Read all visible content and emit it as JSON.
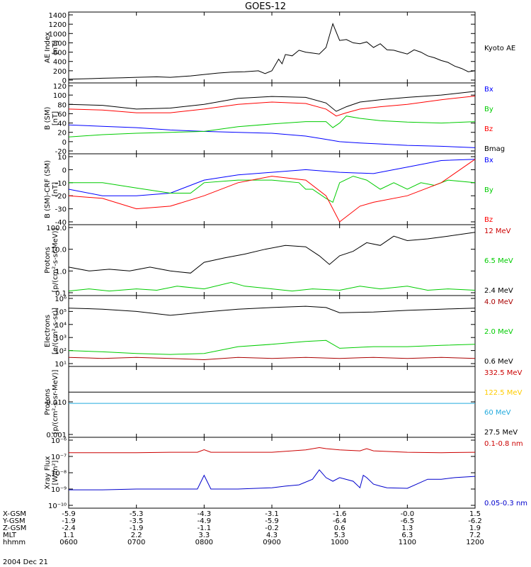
{
  "title": "GOES-12",
  "date_label": "2004 Dec 21",
  "chart_data": [
    {
      "type": "line",
      "ylabel": [
        "AE Index",
        "[nT]"
      ],
      "ylim": [
        0,
        1400
      ],
      "log": false,
      "yticks": [
        0,
        200,
        400,
        600,
        800,
        1000,
        1200,
        1400
      ],
      "ytick_labels": [
        "0",
        "200",
        "400",
        "600",
        "800",
        "1000",
        "1200",
        "1400"
      ],
      "series": [
        {
          "name": "Kyoto AE",
          "color": "#000000",
          "x": [
            0,
            0.3,
            0.5,
            0.8,
            1.0,
            1.3,
            1.5,
            1.8,
            2.0,
            2.2,
            2.4,
            2.6,
            2.8,
            2.9,
            3.0,
            3.1,
            3.15,
            3.2,
            3.3,
            3.4,
            3.5,
            3.6,
            3.7,
            3.8,
            3.9,
            4.0,
            4.1,
            4.2,
            4.3,
            4.4,
            4.5,
            4.6,
            4.7,
            4.8,
            4.9,
            5.0,
            5.1,
            5.2,
            5.3,
            5.4,
            5.5,
            5.6,
            5.7,
            5.8,
            5.9,
            6.0
          ],
          "y": [
            20,
            30,
            40,
            50,
            60,
            70,
            60,
            90,
            120,
            150,
            170,
            180,
            200,
            140,
            200,
            450,
            350,
            550,
            520,
            640,
            600,
            580,
            560,
            700,
            1210,
            850,
            870,
            800,
            780,
            820,
            700,
            780,
            650,
            640,
            600,
            560,
            650,
            600,
            520,
            480,
            420,
            380,
            300,
            250,
            180,
            200
          ]
        }
      ]
    },
    {
      "type": "line",
      "ylabel": [
        "B (SM)",
        "[nT]"
      ],
      "ylim": [
        -20,
        120
      ],
      "log": false,
      "yticks": [
        -20,
        0,
        20,
        40,
        60,
        80,
        100,
        120
      ],
      "ytick_labels": [
        "-20",
        "0",
        "20",
        "40",
        "60",
        "80",
        "100",
        "120"
      ],
      "series": [
        {
          "name": "Bx",
          "color": "#0000ff",
          "x": [
            0,
            0.5,
            1.0,
            1.5,
            2.0,
            2.5,
            3.0,
            3.5,
            3.8,
            4.0,
            4.3,
            4.6,
            5.0,
            5.5,
            6.0
          ],
          "y": [
            36,
            33,
            30,
            25,
            22,
            20,
            18,
            12,
            5,
            0,
            -3,
            -5,
            -8,
            -10,
            -13
          ]
        },
        {
          "name": "By",
          "color": "#00cc00",
          "x": [
            0,
            0.5,
            1.0,
            1.5,
            2.0,
            2.5,
            3.0,
            3.5,
            3.8,
            3.9,
            4.0,
            4.1,
            4.3,
            4.6,
            5.0,
            5.5,
            6.0
          ],
          "y": [
            10,
            15,
            18,
            20,
            22,
            32,
            38,
            43,
            43,
            30,
            40,
            55,
            50,
            45,
            42,
            40,
            43
          ]
        },
        {
          "name": "Bz",
          "color": "#ff0000",
          "x": [
            0,
            0.5,
            1.0,
            1.5,
            2.0,
            2.5,
            3.0,
            3.5,
            3.8,
            3.95,
            4.1,
            4.3,
            4.6,
            5.0,
            5.5,
            6.0
          ],
          "y": [
            70,
            68,
            62,
            62,
            70,
            80,
            85,
            82,
            70,
            55,
            62,
            70,
            75,
            80,
            90,
            98
          ]
        },
        {
          "name": "Bmag",
          "color": "#000000",
          "x": [
            0,
            0.5,
            1.0,
            1.5,
            2.0,
            2.5,
            3.0,
            3.5,
            3.8,
            3.95,
            4.1,
            4.3,
            4.6,
            5.0,
            5.5,
            6.0
          ],
          "y": [
            80,
            78,
            70,
            72,
            80,
            93,
            97,
            95,
            83,
            65,
            75,
            85,
            90,
            95,
            100,
            108
          ]
        }
      ]
    },
    {
      "type": "line",
      "ylabel": [
        "B (SM)-CRF (SM)",
        "[nT]"
      ],
      "ylim": [
        -40,
        10
      ],
      "log": false,
      "yticks": [
        -40,
        -30,
        -20,
        -10,
        0,
        10
      ],
      "ytick_labels": [
        "-40",
        "-30",
        "-20",
        "-10",
        "0",
        "10"
      ],
      "series": [
        {
          "name": "Bx",
          "color": "#0000ff",
          "x": [
            0,
            0.5,
            1.0,
            1.5,
            2.0,
            2.5,
            3.0,
            3.5,
            4.0,
            4.5,
            5.0,
            5.5,
            6.0
          ],
          "y": [
            -15,
            -20,
            -20,
            -18,
            -8,
            -4,
            -2,
            0,
            -2,
            -3,
            2,
            7,
            8
          ]
        },
        {
          "name": "By",
          "color": "#00cc00",
          "x": [
            0,
            0.5,
            1.0,
            1.5,
            1.8,
            2.0,
            2.5,
            3.0,
            3.4,
            3.5,
            3.6,
            3.8,
            3.9,
            4.0,
            4.2,
            4.4,
            4.6,
            4.8,
            5.0,
            5.2,
            5.4,
            5.6,
            6.0
          ],
          "y": [
            -10,
            -10,
            -14,
            -18,
            -18,
            -10,
            -8,
            -8,
            -10,
            -15,
            -15,
            -22,
            -25,
            -10,
            -5,
            -8,
            -15,
            -10,
            -15,
            -10,
            -12,
            -8,
            -10
          ]
        },
        {
          "name": "Bz",
          "color": "#ff0000",
          "x": [
            0,
            0.5,
            1.0,
            1.5,
            2.0,
            2.5,
            3.0,
            3.5,
            3.8,
            4.0,
            4.3,
            4.5,
            5.0,
            5.5,
            6.0
          ],
          "y": [
            -20,
            -22,
            -30,
            -28,
            -20,
            -10,
            -5,
            -8,
            -20,
            -40,
            -28,
            -25,
            -20,
            -10,
            8
          ]
        }
      ]
    },
    {
      "type": "line",
      "ylabel": [
        "Protons",
        "[p/(cm²-s-sr-MeV)]"
      ],
      "ylim": [
        0.1,
        100
      ],
      "log": true,
      "yticks": [
        0.1,
        1,
        10,
        100
      ],
      "ytick_labels": [
        "0.1",
        "1.0",
        "10.0",
        "100.0"
      ],
      "series": [
        {
          "name": "12 MeV",
          "color": "#cc0000",
          "x": [],
          "y": []
        },
        {
          "name": "6.5 MeV",
          "color": "#00cc00",
          "x": [
            0,
            0.3,
            0.6,
            1.0,
            1.3,
            1.6,
            2.0,
            2.4,
            2.6,
            3.0,
            3.3,
            3.6,
            4.0,
            4.3,
            4.6,
            5.0,
            5.3,
            5.6,
            6.0
          ],
          "y": [
            0.12,
            0.15,
            0.12,
            0.15,
            0.13,
            0.2,
            0.15,
            0.3,
            0.2,
            0.15,
            0.12,
            0.15,
            0.13,
            0.2,
            0.15,
            0.2,
            0.13,
            0.15,
            0.13
          ]
        },
        {
          "name": "2.4 MeV",
          "color": "#000000",
          "x": [
            0,
            0.3,
            0.6,
            0.9,
            1.2,
            1.5,
            1.8,
            2.0,
            2.3,
            2.6,
            2.9,
            3.2,
            3.5,
            3.7,
            3.85,
            4.0,
            4.2,
            4.4,
            4.6,
            4.8,
            5.0,
            5.3,
            5.6,
            6.0
          ],
          "y": [
            1.5,
            1.0,
            1.2,
            1.0,
            1.5,
            1.0,
            0.8,
            2.5,
            4,
            6,
            10,
            15,
            13,
            5,
            2,
            5,
            8,
            20,
            15,
            40,
            25,
            30,
            40,
            60
          ]
        }
      ]
    },
    {
      "type": "line",
      "ylabel": [
        "Electrons",
        "[e/(cm²-s-sr)]"
      ],
      "ylim": [
        10,
        1000000
      ],
      "log": true,
      "yticks": [
        10,
        100,
        1000,
        10000,
        100000,
        1000000
      ],
      "ytick_labels": [
        "10¹",
        "10²",
        "10³",
        "10⁴",
        "10⁵",
        "10⁶"
      ],
      "series": [
        {
          "name": "4.0 MeV",
          "color": "#aa0000",
          "x": [
            0,
            0.5,
            1.0,
            1.5,
            2.0,
            2.5,
            3.0,
            3.5,
            4.0,
            4.5,
            5.0,
            5.5,
            6.0
          ],
          "y": [
            30,
            25,
            30,
            25,
            20,
            30,
            25,
            30,
            25,
            30,
            25,
            30,
            25
          ]
        },
        {
          "name": "2.0 MeV",
          "color": "#00cc00",
          "x": [
            0,
            0.5,
            1.0,
            1.5,
            2.0,
            2.5,
            3.0,
            3.5,
            3.8,
            4.0,
            4.5,
            5.0,
            5.5,
            6.0
          ],
          "y": [
            100,
            80,
            60,
            50,
            60,
            200,
            300,
            500,
            600,
            150,
            200,
            200,
            250,
            300
          ]
        },
        {
          "name": "0.6 MeV",
          "color": "#000000",
          "x": [
            0,
            0.5,
            1.0,
            1.5,
            2.0,
            2.5,
            3.0,
            3.5,
            3.8,
            4.0,
            4.5,
            5.0,
            5.5,
            6.0
          ],
          "y": [
            180000,
            150000,
            100000,
            50000,
            90000,
            150000,
            200000,
            250000,
            200000,
            80000,
            90000,
            120000,
            150000,
            180000
          ]
        }
      ]
    },
    {
      "type": "line",
      "ylabel": [
        "Protons",
        "[p/(cm²-s-sr-MeV)]"
      ],
      "ylim": [
        0.001,
        0.1
      ],
      "log": true,
      "yticks": [
        0.001,
        0.01
      ],
      "ytick_labels": [
        "0.001",
        "0.010"
      ],
      "series": [
        {
          "name": "332.5 MeV",
          "color": "#cc0000",
          "x": [],
          "y": []
        },
        {
          "name": "122.5 MeV",
          "color": "#ffcc00",
          "x": [],
          "y": []
        },
        {
          "name": "60 MeV",
          "color": "#22aadd",
          "x": [
            0,
            6
          ],
          "y": [
            0.009,
            0.009
          ]
        },
        {
          "name": "27.5 MeV",
          "color": "#000000",
          "x": [
            0,
            6
          ],
          "y": [
            0.02,
            0.02
          ]
        }
      ]
    },
    {
      "type": "line",
      "ylabel": [
        "Xray Flux",
        "[W/m²]"
      ],
      "ylim": [
        1e-10,
        1e-06
      ],
      "log": true,
      "yticks": [
        1e-10,
        1e-09,
        1e-08,
        1e-07,
        1e-06
      ],
      "ytick_labels": [
        "10⁻¹⁰",
        "10⁻⁹",
        "10⁻⁸",
        "10⁻⁷",
        "10⁻⁶"
      ],
      "series": [
        {
          "name": "0.1-0.8 nm",
          "color": "#cc0000",
          "x": [
            0,
            1.0,
            1.5,
            1.9,
            2.0,
            2.1,
            2.5,
            3.0,
            3.5,
            3.7,
            3.8,
            4.0,
            4.3,
            4.4,
            4.5,
            5.0,
            5.5,
            6.0
          ],
          "y": [
            1.7e-07,
            1.7e-07,
            1.8e-07,
            1.8e-07,
            2.6e-07,
            1.8e-07,
            1.8e-07,
            1.8e-07,
            2.5e-07,
            3.5e-07,
            3e-07,
            2.5e-07,
            2.2e-07,
            3e-07,
            2.2e-07,
            1.8e-07,
            1.7e-07,
            1.8e-07
          ]
        },
        {
          "name": "0.05-0.3 nm",
          "color": "#0000cc",
          "x": [
            0,
            0.5,
            1.0,
            1.5,
            1.9,
            2.0,
            2.1,
            2.3,
            2.5,
            3.0,
            3.2,
            3.4,
            3.6,
            3.7,
            3.8,
            3.9,
            4.0,
            4.2,
            4.3,
            4.35,
            4.4,
            4.5,
            4.6,
            4.7,
            5.0,
            5.3,
            5.5,
            5.7,
            6.0
          ],
          "y": [
            9e-10,
            9e-10,
            1e-09,
            1e-09,
            1e-09,
            7e-09,
            1e-09,
            1e-09,
            1e-09,
            1.2e-09,
            1.5e-09,
            1.8e-09,
            4e-09,
            1.5e-08,
            5e-09,
            3e-09,
            5e-09,
            3e-09,
            1.2e-09,
            7e-09,
            5e-09,
            2e-09,
            1.5e-09,
            1.2e-09,
            1.1e-09,
            4e-09,
            4e-09,
            5e-09,
            6e-09
          ]
        }
      ]
    }
  ],
  "xaxis": {
    "xlim": [
      0,
      6
    ],
    "rows": [
      {
        "label": "X-GSM",
        "values": [
          "-5.9",
          "-5.3",
          "-4.3",
          "-3.1",
          "-1.6",
          "-0.0",
          "1.5"
        ]
      },
      {
        "label": "Y-GSM",
        "values": [
          "-1.9",
          "-3.5",
          "-4.9",
          "-5.9",
          "-6.4",
          "-6.5",
          "-6.2"
        ]
      },
      {
        "label": "Z-GSM",
        "values": [
          "-2.4",
          "-1.9",
          "-1.1",
          "-0.2",
          "0.6",
          "1.3",
          "1.9"
        ]
      },
      {
        "label": "MLT",
        "values": [
          "1.1",
          "2.2",
          "3.3",
          "4.3",
          "5.3",
          "6.3",
          "7.2"
        ]
      },
      {
        "label": "hhmm",
        "values": [
          "0600",
          "0700",
          "0800",
          "0900",
          "1000",
          "1100",
          "1200"
        ]
      }
    ]
  }
}
